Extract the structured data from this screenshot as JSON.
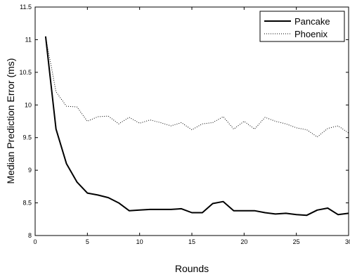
{
  "chart_data": {
    "type": "line",
    "xlabel": "Rounds",
    "ylabel": "Median Prediction Error (ms)",
    "xlim": [
      0,
      30
    ],
    "ylim": [
      8,
      11.5
    ],
    "xticks": [
      "0",
      "5",
      "10",
      "15",
      "20",
      "25",
      "30"
    ],
    "yticks": [
      "8",
      "8.5",
      "9",
      "9.5",
      "10",
      "10.5",
      "11",
      "11.5"
    ],
    "grid": false,
    "legend_position": "top-right",
    "x": [
      1,
      2,
      3,
      4,
      5,
      6,
      7,
      8,
      9,
      10,
      11,
      12,
      13,
      14,
      15,
      16,
      17,
      18,
      19,
      20,
      21,
      22,
      23,
      24,
      25,
      26,
      27,
      28,
      29,
      30
    ],
    "series": [
      {
        "name": "Pancake",
        "style": "solid",
        "color": "#000000",
        "values": [
          11.05,
          9.63,
          9.1,
          8.82,
          8.65,
          8.62,
          8.58,
          8.5,
          8.38,
          8.39,
          8.4,
          8.4,
          8.4,
          8.41,
          8.35,
          8.35,
          8.49,
          8.52,
          8.38,
          8.38,
          8.38,
          8.35,
          8.33,
          8.34,
          8.32,
          8.31,
          8.39,
          8.42,
          8.32,
          8.34
        ]
      },
      {
        "name": "Phoenix",
        "style": "dotted",
        "color": "#000000",
        "values": [
          11.05,
          10.2,
          9.98,
          9.97,
          9.75,
          9.82,
          9.83,
          9.71,
          9.81,
          9.72,
          9.77,
          9.73,
          9.68,
          9.73,
          9.62,
          9.71,
          9.73,
          9.82,
          9.63,
          9.75,
          9.63,
          9.81,
          9.75,
          9.71,
          9.65,
          9.62,
          9.51,
          9.64,
          9.68,
          9.57
        ]
      }
    ]
  }
}
